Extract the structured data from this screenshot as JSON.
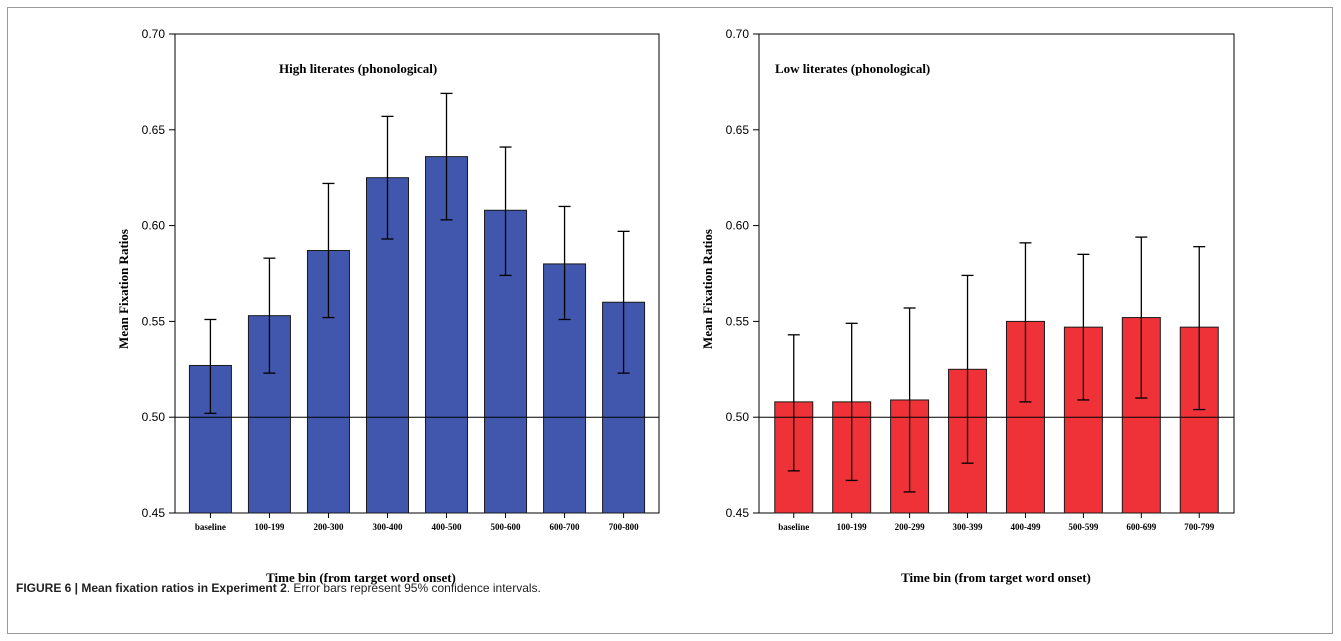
{
  "caption": {
    "label": "FIGURE 6 | Mean fixation ratios in Experiment 2",
    "text": ". Error bars represent 95% confidence intervals."
  },
  "colors": {
    "high": "#4057ad",
    "low": "#ee3237"
  },
  "chart_data": [
    {
      "type": "bar",
      "title": "High literates  (phonological)",
      "xlabel": "Time bin (from target word onset)",
      "ylabel": "Mean Fixation Ratios",
      "ylim": [
        0.45,
        0.7
      ],
      "yticks": [
        "0.45",
        "0.50",
        "0.55",
        "0.60",
        "0.65",
        "0.70"
      ],
      "reference_line": 0.5,
      "grid": false,
      "categories": [
        "baseline",
        "100-199",
        "200-300",
        "300-400",
        "400-500",
        "500-600",
        "600-700",
        "700-800"
      ],
      "values": [
        0.527,
        0.553,
        0.587,
        0.625,
        0.636,
        0.608,
        0.58,
        0.56
      ],
      "ci_low": [
        0.502,
        0.523,
        0.552,
        0.593,
        0.603,
        0.574,
        0.551,
        0.523
      ],
      "ci_high": [
        0.551,
        0.583,
        0.622,
        0.657,
        0.669,
        0.641,
        0.61,
        0.597
      ],
      "color": "#4057ad"
    },
    {
      "type": "bar",
      "title": "Low literates (phonological)",
      "xlabel": "Time bin (from target word onset)",
      "ylabel": "Mean Fixation Ratios",
      "ylim": [
        0.45,
        0.7
      ],
      "yticks": [
        "0.45",
        "0.50",
        "0.55",
        "0.60",
        "0.65",
        "0.70"
      ],
      "reference_line": 0.5,
      "grid": false,
      "categories": [
        "baseline",
        "100-199",
        "200-299",
        "300-399",
        "400-499",
        "500-599",
        "600-699",
        "700-799"
      ],
      "values": [
        0.508,
        0.508,
        0.509,
        0.525,
        0.55,
        0.547,
        0.552,
        0.547
      ],
      "ci_low": [
        0.472,
        0.467,
        0.461,
        0.476,
        0.508,
        0.509,
        0.51,
        0.504
      ],
      "ci_high": [
        0.543,
        0.549,
        0.557,
        0.574,
        0.591,
        0.585,
        0.594,
        0.589
      ],
      "color": "#ee3237"
    }
  ]
}
